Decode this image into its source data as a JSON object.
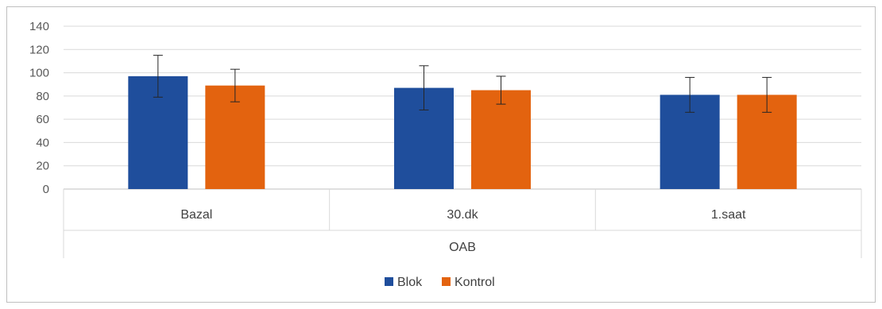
{
  "chart_data": {
    "type": "bar",
    "categories": [
      "Bazal",
      "30.dk",
      "1.saat"
    ],
    "group_label": "OAB",
    "series": [
      {
        "name": "Blok",
        "values": [
          97,
          87,
          81
        ],
        "error": [
          18,
          19,
          15
        ],
        "color": "#1f4e9c"
      },
      {
        "name": "Kontrol",
        "values": [
          89,
          85,
          81
        ],
        "error": [
          14,
          12,
          15
        ],
        "color": "#e3630f"
      }
    ],
    "ylim": [
      0,
      140
    ],
    "yticks": [
      0,
      20,
      40,
      60,
      80,
      100,
      120,
      140
    ],
    "grid": true,
    "legend": "bottom-center",
    "xlabel": "",
    "ylabel": ""
  }
}
